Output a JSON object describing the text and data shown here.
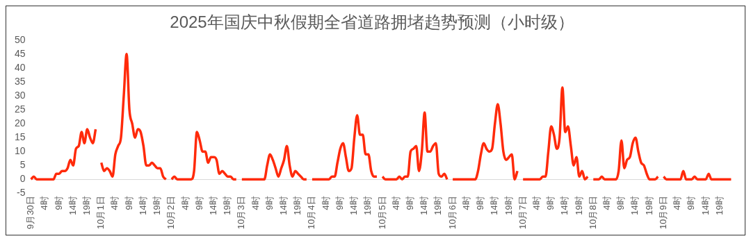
{
  "chart_data": {
    "type": "line",
    "title": "2025年国庆中秋假期全省道路拥堵趋势预测（小时级）",
    "categories": [
      "9月30日",
      null,
      null,
      null,
      null,
      "4时",
      null,
      null,
      null,
      null,
      "9时",
      null,
      null,
      null,
      null,
      "14时",
      null,
      null,
      null,
      null,
      "19时",
      null,
      null,
      null,
      null,
      "10月1日",
      null,
      null,
      null,
      null,
      "4时",
      null,
      null,
      null,
      null,
      "9时",
      null,
      null,
      null,
      null,
      "14时",
      null,
      null,
      null,
      null,
      "19时",
      null,
      null,
      null,
      null,
      "10月2日",
      null,
      null,
      null,
      null,
      "4时",
      null,
      null,
      null,
      null,
      "9时",
      null,
      null,
      null,
      null,
      "14时",
      null,
      null,
      null,
      null,
      "19时",
      null,
      null,
      null,
      null,
      "10月3日",
      null,
      null,
      null,
      null,
      "4时",
      null,
      null,
      null,
      null,
      "9时",
      null,
      null,
      null,
      null,
      "14时",
      null,
      null,
      null,
      null,
      "19时",
      null,
      null,
      null,
      null,
      "10月4日",
      null,
      null,
      null,
      null,
      "4时",
      null,
      null,
      null,
      null,
      "9时",
      null,
      null,
      null,
      null,
      "14时",
      null,
      null,
      null,
      null,
      "19时",
      null,
      null,
      null,
      null,
      "10月5日",
      null,
      null,
      null,
      null,
      "4时",
      null,
      null,
      null,
      null,
      "9时",
      null,
      null,
      null,
      null,
      "14时",
      null,
      null,
      null,
      null,
      "19时",
      null,
      null,
      null,
      null,
      "10月6日",
      null,
      null,
      null,
      null,
      "4时",
      null,
      null,
      null,
      null,
      "9时",
      null,
      null,
      null,
      null,
      "14时",
      null,
      null,
      null,
      null,
      "19时",
      null,
      null,
      null,
      null,
      "10月7日",
      null,
      null,
      null,
      null,
      "4时",
      null,
      null,
      null,
      null,
      "9时",
      null,
      null,
      null,
      null,
      "14时",
      null,
      null,
      null,
      null,
      "19时",
      null,
      null,
      null,
      null,
      "10月8日",
      null,
      null,
      null,
      null,
      "4时",
      null,
      null,
      null,
      null,
      "9时",
      null,
      null,
      null,
      null,
      "14时",
      null,
      null,
      null,
      null,
      "19时",
      null,
      null,
      null,
      null,
      "10月9日",
      null,
      null,
      null,
      null,
      "4时",
      null,
      null,
      null,
      null,
      "9时",
      null,
      null,
      null,
      null,
      "14时",
      null,
      null,
      null,
      null,
      "19时",
      null,
      null,
      null,
      null
    ],
    "series": [
      {
        "color": "#ff2a0a",
        "values": [
          0,
          1,
          0,
          0,
          0,
          0,
          0,
          0,
          0,
          2,
          2,
          3,
          3,
          4,
          7,
          5,
          11,
          12,
          17,
          13,
          18,
          15,
          13,
          18,
          null,
          6,
          3,
          4,
          3,
          1,
          9,
          12,
          15,
          30,
          45,
          25,
          20,
          15,
          18,
          17,
          12,
          5,
          5,
          6,
          5,
          4,
          4,
          1,
          0,
          null,
          0,
          1,
          0,
          0,
          0,
          0,
          0,
          0,
          3,
          17,
          14,
          10,
          10,
          6,
          8,
          8,
          7,
          2,
          3,
          2,
          1,
          1,
          0,
          0,
          null,
          0,
          0,
          0,
          0,
          0,
          0,
          0,
          0,
          0,
          5,
          9,
          7,
          4,
          1,
          4,
          7,
          12,
          5,
          1,
          3,
          2,
          1,
          0,
          0,
          null,
          0,
          0,
          0,
          0,
          0,
          0,
          0,
          1,
          1,
          6,
          11,
          13,
          8,
          3,
          4,
          15,
          23,
          16,
          16,
          9,
          9,
          3,
          1,
          1,
          null,
          1,
          0,
          0,
          0,
          0,
          0,
          1,
          0,
          1,
          1,
          10,
          11,
          12,
          3,
          10,
          24,
          10,
          10,
          12,
          13,
          2,
          1,
          2,
          0,
          null,
          0,
          0,
          0,
          0,
          0,
          0,
          0,
          0,
          0,
          3,
          9,
          13,
          11,
          10,
          11,
          20,
          27,
          20,
          10,
          7,
          8,
          9,
          0,
          3,
          null,
          0,
          0,
          0,
          0,
          0,
          0,
          0,
          1,
          1,
          10,
          19,
          16,
          11,
          15,
          33,
          17,
          19,
          12,
          5,
          8,
          1,
          3,
          0,
          1,
          null,
          0,
          0,
          0,
          1,
          0,
          0,
          0,
          0,
          0,
          3,
          14,
          4,
          7,
          8,
          13,
          15,
          10,
          6,
          5,
          2,
          0,
          0,
          0,
          1,
          null,
          1,
          0,
          0,
          0,
          0,
          0,
          0,
          3,
          0,
          0,
          0,
          1,
          0,
          0,
          0,
          0,
          2,
          0,
          0,
          0,
          0,
          0,
          0,
          0,
          0
        ]
      }
    ],
    "ylim": [
      -5,
      50
    ],
    "yticks": [
      -5,
      0,
      5,
      10,
      15,
      20,
      25,
      30,
      35,
      40,
      45,
      50
    ],
    "grid": false,
    "legend": false,
    "marker": "none",
    "line_style": "solid"
  }
}
